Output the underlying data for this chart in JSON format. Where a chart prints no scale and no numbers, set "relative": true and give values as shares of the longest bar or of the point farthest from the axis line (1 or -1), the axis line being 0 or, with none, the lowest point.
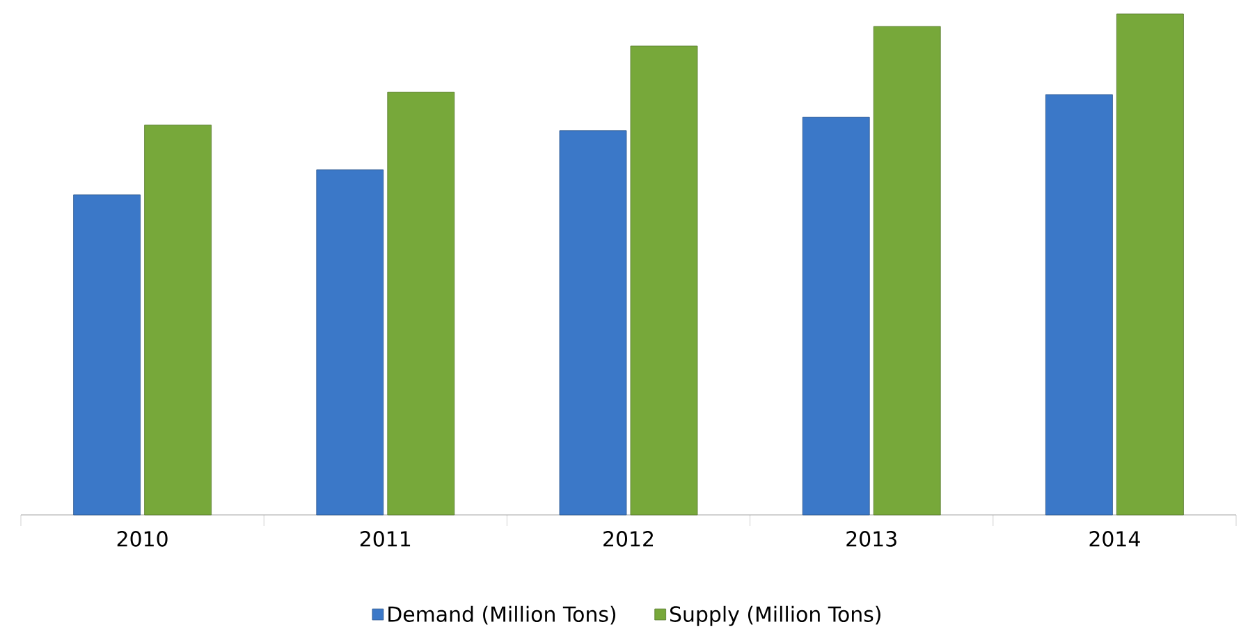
{
  "chart_data": {
    "type": "bar",
    "relative": true,
    "categories": [
      "2010",
      "2011",
      "2012",
      "2013",
      "2014"
    ],
    "series": [
      {
        "name": "Demand (Million Tons)",
        "color": "#3b78c8",
        "values": [
          0.639,
          0.689,
          0.767,
          0.794,
          0.839
        ]
      },
      {
        "name": "Supply (Million Tons)",
        "color": "#77a83a",
        "values": [
          0.778,
          0.844,
          0.936,
          0.975,
          1.0
        ]
      }
    ],
    "legend": "bottom"
  }
}
